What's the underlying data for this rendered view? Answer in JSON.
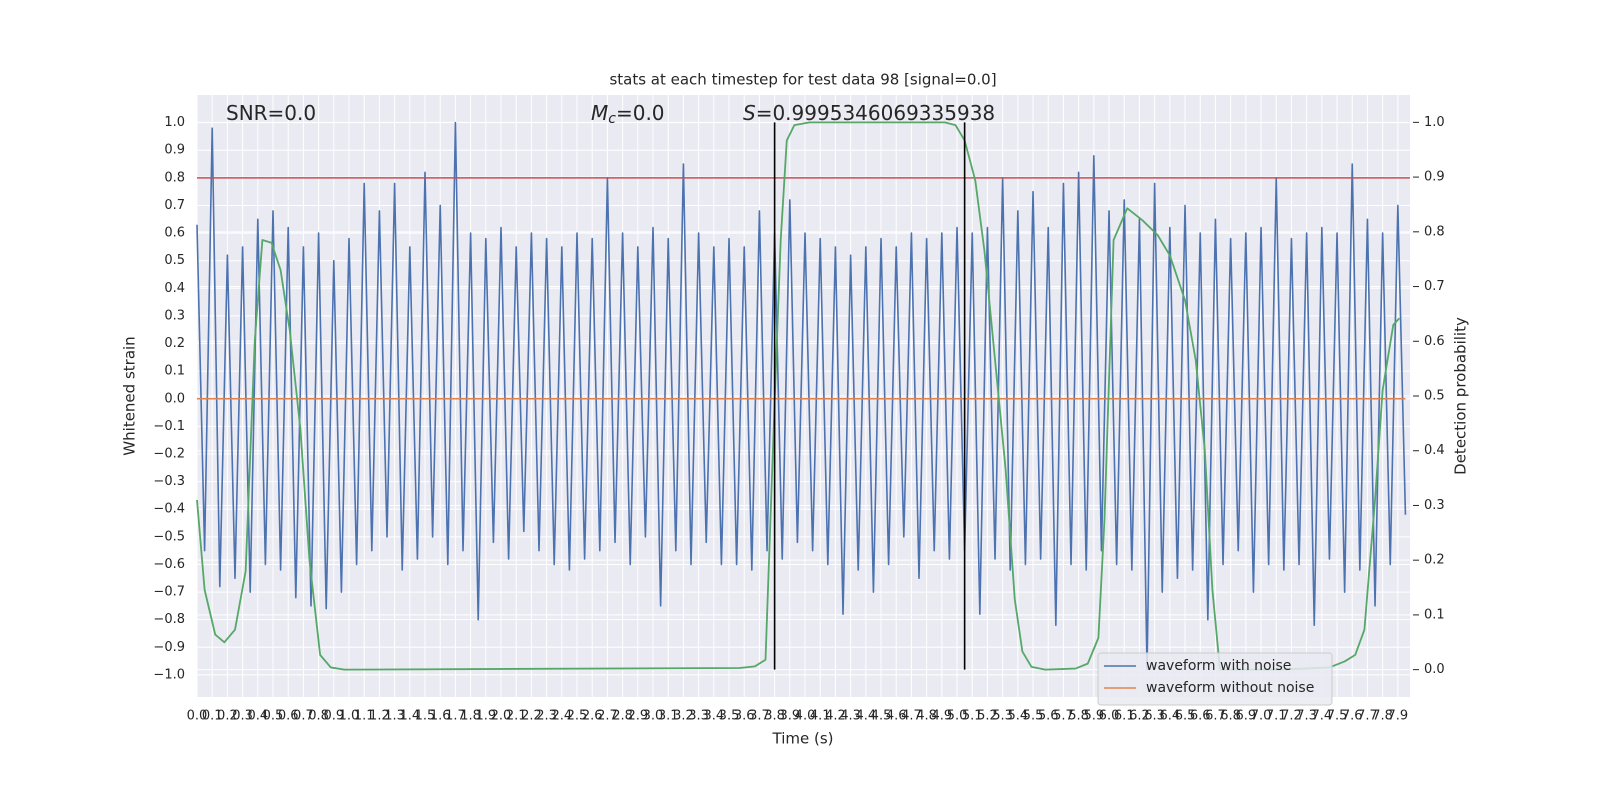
{
  "chart_data": {
    "type": "line",
    "title": "stats at each timestep for test data 98 [signal=0.0]",
    "xlabel": "Time (s)",
    "ylabel": "Whitened strain",
    "y2label": "Detection probability",
    "annotations": [
      {
        "parts": [
          "SNR=0.0"
        ]
      },
      {
        "parts": [
          "M",
          "c",
          "=0.0"
        ]
      },
      {
        "parts": [
          "S",
          "=0.9995346069335938"
        ]
      }
    ],
    "xlim": [
      0,
      7.98
    ],
    "ylim": [
      -1.08,
      1.1
    ],
    "y2lim": [
      -0.05,
      1.05
    ],
    "xticks": [
      {
        "value": 0,
        "label": "0.0"
      },
      0.1,
      0.2,
      0.3,
      0.4,
      0.5,
      0.6,
      0.7,
      0.8,
      0.9,
      {
        "value": 1,
        "label": "1.0"
      },
      1.1,
      1.2,
      1.3,
      1.4,
      1.5,
      1.6,
      1.7,
      1.8,
      1.9,
      {
        "value": 2,
        "label": "2.0"
      },
      2.1,
      2.2,
      2.3,
      2.4,
      2.5,
      2.6,
      2.7,
      2.8,
      2.9,
      {
        "value": 3,
        "label": "3.0"
      },
      3.1,
      3.2,
      3.3,
      3.4,
      3.5,
      3.6,
      3.7,
      3.8,
      3.9,
      {
        "value": 4,
        "label": "4.0"
      },
      4.1,
      4.2,
      4.3,
      4.4,
      4.5,
      4.6,
      4.7,
      4.8,
      4.9,
      {
        "value": 5,
        "label": "5.0"
      },
      5.1,
      5.2,
      5.3,
      5.4,
      5.5,
      5.6,
      5.7,
      5.8,
      5.9,
      {
        "value": 6,
        "label": "6.0"
      },
      6.1,
      6.2,
      6.3,
      6.4,
      6.5,
      6.6,
      6.7,
      6.8,
      6.9,
      {
        "value": 7,
        "label": "7.0"
      },
      7.1,
      7.2,
      7.3,
      7.4,
      7.5,
      7.6,
      7.7,
      7.8,
      7.9
    ],
    "yticks": [
      {
        "value": -1,
        "label": "−1.0"
      },
      {
        "value": -0.9,
        "label": "−0.9"
      },
      {
        "value": -0.8,
        "label": "−0.8"
      },
      {
        "value": -0.7,
        "label": "−0.7"
      },
      {
        "value": -0.6,
        "label": "−0.6"
      },
      {
        "value": -0.5,
        "label": "−0.5"
      },
      {
        "value": -0.4,
        "label": "−0.4"
      },
      {
        "value": -0.3,
        "label": "−0.3"
      },
      {
        "value": -0.2,
        "label": "−0.2"
      },
      {
        "value": -0.1,
        "label": "−0.1"
      },
      {
        "value": 0,
        "label": "0.0"
      },
      0.1,
      0.2,
      0.3,
      0.4,
      0.5,
      0.6,
      0.7,
      0.8,
      0.9,
      {
        "value": 1,
        "label": "1.0"
      }
    ],
    "y2ticks": [
      {
        "value": 0,
        "label": "0.0"
      },
      0.1,
      0.2,
      0.3,
      0.4,
      0.5,
      0.6,
      0.7,
      0.8,
      0.9,
      {
        "value": 1,
        "label": "1.0"
      }
    ],
    "grid": true,
    "legend": "lower right",
    "series": [
      {
        "name": "waveform with noise",
        "color": "#4c72b0",
        "x": [
          0,
          0.05,
          0.1,
          0.15,
          0.2,
          0.25,
          0.3,
          0.35,
          0.4,
          0.45,
          0.5,
          0.55,
          0.6,
          0.65,
          0.7,
          0.75,
          0.8,
          0.85,
          0.9,
          0.95,
          1,
          1.05,
          1.1,
          1.15,
          1.2,
          1.25,
          1.3,
          1.35,
          1.4,
          1.45,
          1.5,
          1.55,
          1.6,
          1.65,
          1.7,
          1.75,
          1.8,
          1.85,
          1.9,
          1.95,
          2,
          2.05,
          2.1,
          2.15,
          2.2,
          2.25,
          2.3,
          2.35,
          2.4,
          2.45,
          2.5,
          2.55,
          2.6,
          2.65,
          2.7,
          2.75,
          2.8,
          2.85,
          2.9,
          2.95,
          3,
          3.05,
          3.1,
          3.15,
          3.2,
          3.25,
          3.3,
          3.35,
          3.4,
          3.45,
          3.5,
          3.55,
          3.6,
          3.65,
          3.7,
          3.75,
          3.8,
          3.85,
          3.9,
          3.95,
          4,
          4.05,
          4.1,
          4.15,
          4.2,
          4.25,
          4.3,
          4.35,
          4.4,
          4.45,
          4.5,
          4.55,
          4.6,
          4.65,
          4.7,
          4.75,
          4.8,
          4.85,
          4.9,
          4.95,
          5,
          5.05,
          5.1,
          5.15,
          5.2,
          5.25,
          5.3,
          5.35,
          5.4,
          5.45,
          5.5,
          5.55,
          5.6,
          5.65,
          5.7,
          5.75,
          5.8,
          5.85,
          5.9,
          5.95,
          6,
          6.05,
          6.1,
          6.15,
          6.2,
          6.25,
          6.3,
          6.35,
          6.4,
          6.45,
          6.5,
          6.55,
          6.6,
          6.65,
          6.7,
          6.75,
          6.8,
          6.85,
          6.9,
          6.95,
          7,
          7.05,
          7.1,
          7.15,
          7.2,
          7.25,
          7.3,
          7.35,
          7.4,
          7.45,
          7.5,
          7.55,
          7.6,
          7.65,
          7.7,
          7.75,
          7.8,
          7.85,
          7.9,
          7.95
        ],
        "values": [
          0.63,
          -0.55,
          0.98,
          -0.68,
          0.52,
          -0.65,
          0.55,
          -0.7,
          0.65,
          -0.6,
          0.68,
          -0.62,
          0.62,
          -0.72,
          0.55,
          -0.75,
          0.6,
          -0.76,
          0.5,
          -0.7,
          0.58,
          -0.6,
          0.78,
          -0.55,
          0.68,
          -0.5,
          0.78,
          -0.62,
          0.55,
          -0.58,
          0.82,
          -0.5,
          0.7,
          -0.6,
          1.0,
          -0.55,
          0.6,
          -0.8,
          0.58,
          -0.52,
          0.62,
          -0.58,
          0.55,
          -0.48,
          0.6,
          -0.55,
          0.58,
          -0.6,
          0.55,
          -0.62,
          0.6,
          -0.58,
          0.58,
          -0.55,
          0.8,
          -0.52,
          0.6,
          -0.6,
          0.55,
          -0.5,
          0.62,
          -0.75,
          0.58,
          -0.55,
          0.85,
          -0.6,
          0.6,
          -0.52,
          0.55,
          -0.6,
          0.58,
          -0.6,
          0.55,
          -0.62,
          0.68,
          -0.55,
          0.6,
          -0.58,
          0.72,
          -0.52,
          0.6,
          -0.55,
          0.58,
          -0.6,
          0.55,
          -0.78,
          0.52,
          -0.62,
          0.55,
          -0.7,
          0.58,
          -0.6,
          0.55,
          -0.5,
          0.6,
          -0.65,
          0.58,
          -0.55,
          0.6,
          -0.58,
          0.62,
          -0.55,
          0.6,
          -0.78,
          0.62,
          -0.58,
          0.8,
          -0.62,
          0.68,
          -0.6,
          0.75,
          -0.58,
          0.62,
          -0.82,
          0.78,
          -0.6,
          0.82,
          -0.62,
          0.88,
          -0.55,
          0.68,
          -0.6,
          0.72,
          -0.62,
          0.65,
          -0.98,
          0.78,
          -0.7,
          0.62,
          -0.65,
          0.7,
          -0.62,
          0.6,
          -0.8,
          0.65,
          -0.6,
          0.58,
          -0.55,
          0.6,
          -0.7,
          0.62,
          -0.6,
          0.8,
          -0.62,
          0.58,
          -0.6,
          0.6,
          -0.82,
          0.62,
          -0.58,
          0.6,
          -0.7,
          0.85,
          -0.62,
          0.65,
          -0.75,
          0.6,
          -0.6,
          0.7,
          -0.42
        ]
      },
      {
        "name": "waveform without noise",
        "color": "#dd8452",
        "x": [
          0,
          7.95
        ],
        "values": [
          0,
          0
        ]
      },
      {
        "color": "#55a868",
        "axis": "y2",
        "x": [
          0,
          0.05,
          0.12,
          0.18,
          0.25,
          0.32,
          0.38,
          0.43,
          0.49,
          0.55,
          0.61,
          0.68,
          0.74,
          0.81,
          0.88,
          0.97,
          3.57,
          3.67,
          3.74,
          3.8,
          3.84,
          3.88,
          3.93,
          4.03,
          4.92,
          4.99,
          5.05,
          5.12,
          5.18,
          5.25,
          5.32,
          5.38,
          5.43,
          5.49,
          5.58,
          5.78,
          5.86,
          5.93,
          5.97,
          6.03,
          6.12,
          6.22,
          6.32,
          6.4,
          6.5,
          6.57,
          6.63,
          6.68,
          6.73,
          7.13,
          7.45,
          7.55,
          7.62,
          7.68,
          7.75,
          7.8,
          7.87,
          7.91
        ],
        "values": [
          0.31,
          0.146,
          0.064,
          0.05,
          0.073,
          0.18,
          0.6,
          0.785,
          0.78,
          0.73,
          0.62,
          0.44,
          0.2,
          0.027,
          0.004,
          0,
          0.003,
          0.006,
          0.018,
          0.49,
          0.785,
          0.967,
          0.995,
          1,
          1,
          0.995,
          0.967,
          0.894,
          0.766,
          0.566,
          0.365,
          0.128,
          0.033,
          0.005,
          0,
          0.002,
          0.011,
          0.058,
          0.274,
          0.785,
          0.843,
          0.821,
          0.794,
          0.757,
          0.675,
          0.566,
          0.401,
          0.146,
          0,
          0,
          0.004,
          0.015,
          0.027,
          0.073,
          0.31,
          0.511,
          0.63,
          0.642
        ]
      }
    ],
    "hline": {
      "value": 0.8,
      "color": "#c44e52"
    },
    "vlines": {
      "x": [
        3.8,
        5.05
      ],
      "span": [
        0,
        1
      ],
      "axis": "y2",
      "color": "#000000"
    }
  }
}
